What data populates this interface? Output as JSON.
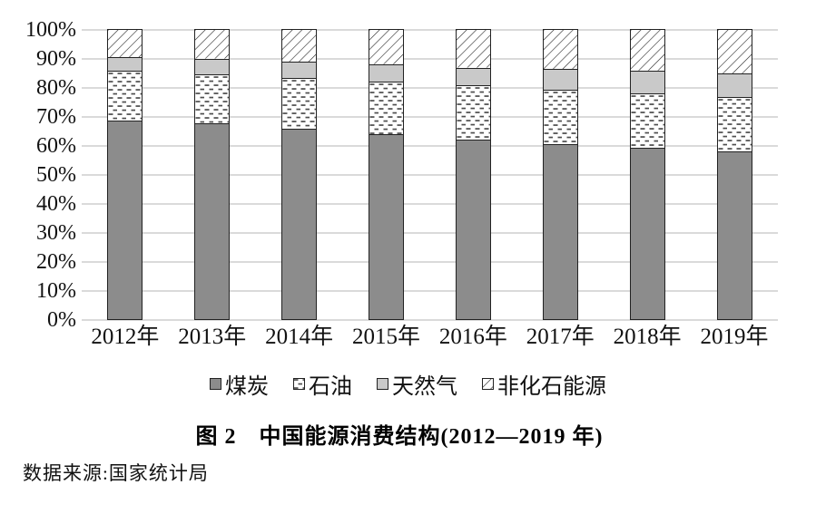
{
  "figure": {
    "title": "图 2　中国能源消费结构(2012—2019 年)",
    "source": "数据来源:国家统计局"
  },
  "chart_data": {
    "type": "bar",
    "subtype": "stacked-percent",
    "title": "图 2　中国能源消费结构(2012—2019 年)",
    "xlabel": "",
    "ylabel": "",
    "ylim": [
      0,
      100
    ],
    "y_tick_step": 10,
    "y_tick_labels": [
      "0%",
      "10%",
      "20%",
      "30%",
      "40%",
      "50%",
      "60%",
      "70%",
      "80%",
      "90%",
      "100%"
    ],
    "grid": true,
    "legend_position": "bottom",
    "categories": [
      "2012年",
      "2013年",
      "2014年",
      "2015年",
      "2016年",
      "2017年",
      "2018年",
      "2019年"
    ],
    "series": [
      {
        "name": "煤炭",
        "style": "solid-dark-gray",
        "values": [
          68.5,
          67.4,
          65.6,
          63.7,
          62.0,
          60.4,
          59.0,
          57.7
        ]
      },
      {
        "name": "石油",
        "style": "white-dash-pattern",
        "values": [
          17.0,
          17.1,
          17.4,
          18.3,
          18.5,
          18.8,
          18.9,
          18.9
        ]
      },
      {
        "name": "天然气",
        "style": "solid-light-gray",
        "values": [
          4.8,
          5.3,
          5.7,
          5.9,
          6.2,
          7.0,
          7.8,
          8.1
        ]
      },
      {
        "name": "非化石能源",
        "style": "diagonal-hatch",
        "values": [
          9.7,
          10.2,
          11.3,
          12.1,
          13.3,
          13.8,
          14.3,
          15.3
        ]
      }
    ],
    "unit": "percent"
  },
  "colors": {
    "coal_fill": "#8c8c8c",
    "gas_fill": "#c9c9c9",
    "bar_border": "#222222",
    "gridline": "#dadada",
    "pattern_ink": "#4d4d4d",
    "text": "#111111"
  }
}
